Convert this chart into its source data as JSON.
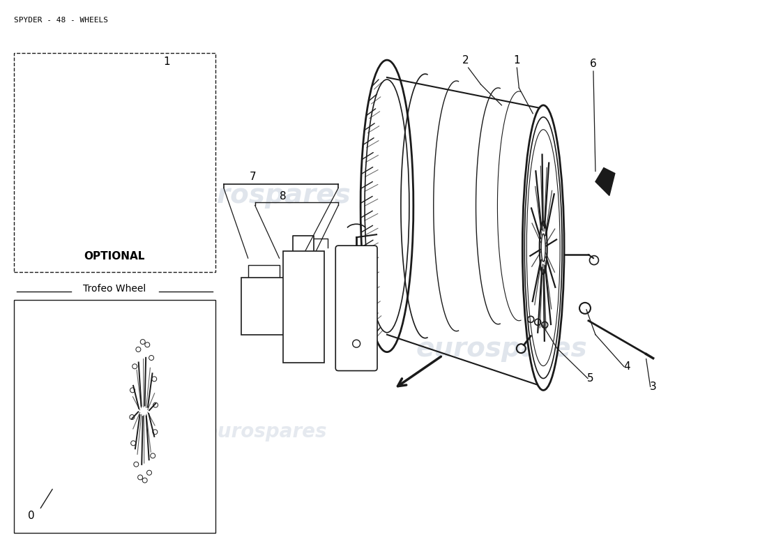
{
  "title": "SPYDER - 48 - WHEELS",
  "bg": "#ffffff",
  "lc": "#1a1a1a",
  "tc": "#000000",
  "wc": "#ccd5e0",
  "watermark": "eurospares",
  "optional_label": "OPTIONAL",
  "trofeo_label": "Trofeo Wheel",
  "fig_w": 11.0,
  "fig_h": 8.0,
  "dpi": 100
}
